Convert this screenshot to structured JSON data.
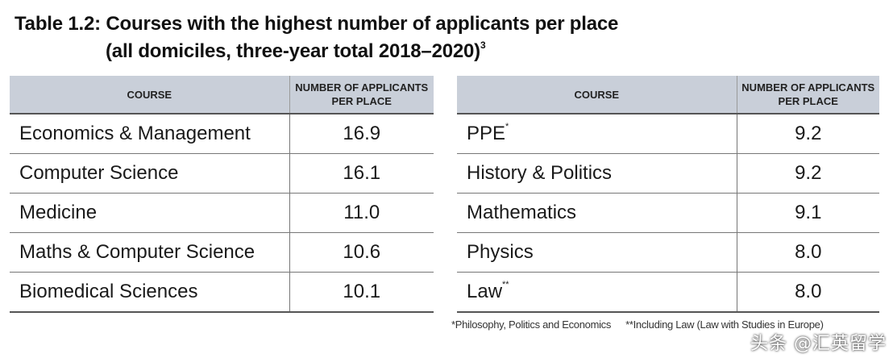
{
  "title": {
    "line1": "Table 1.2: Courses with the highest number of applicants per place",
    "line2": "(all domiciles, three-year total 2018–2020)",
    "line2_superscript": "3"
  },
  "headers": {
    "course": "COURSE",
    "value_line1": "NUMBER OF APPLICANTS",
    "value_line2": "PER PLACE"
  },
  "left_table": {
    "rows": [
      {
        "course": "Economics & Management",
        "mark": "",
        "value": "16.9"
      },
      {
        "course": "Computer Science",
        "mark": "",
        "value": "16.1"
      },
      {
        "course": "Medicine",
        "mark": "",
        "value": "11.0"
      },
      {
        "course": "Maths & Computer Science",
        "mark": "",
        "value": "10.6"
      },
      {
        "course": "Biomedical Sciences",
        "mark": "",
        "value": "10.1"
      }
    ]
  },
  "right_table": {
    "rows": [
      {
        "course": "PPE",
        "mark": "*",
        "value": "9.2"
      },
      {
        "course": "History & Politics",
        "mark": "",
        "value": "9.2"
      },
      {
        "course": "Mathematics",
        "mark": "",
        "value": "9.1"
      },
      {
        "course": "Physics",
        "mark": "",
        "value": "8.0"
      },
      {
        "course": "Law",
        "mark": "**",
        "value": "8.0"
      }
    ]
  },
  "footnotes": {
    "note1": "*Philosophy, Politics and Economics",
    "note2": "**Including Law (Law with Studies in Europe)"
  },
  "watermark": "头条 @汇英留学"
}
